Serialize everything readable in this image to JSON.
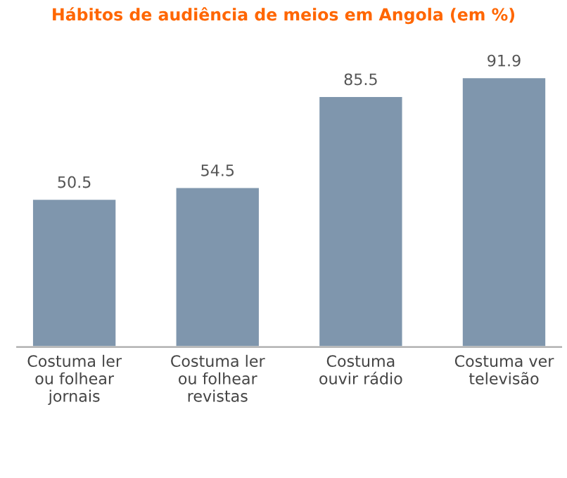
{
  "chart_data": {
    "type": "bar",
    "title": "Hábitos de audiência de meios em Angola (em %)",
    "categories": [
      "Costuma ler\nou folhear\njornais",
      "Costuma ler\nou folhear\nrevistas",
      "Costuma\nouvir rádio",
      "Costuma ver\ntelevisão"
    ],
    "values": [
      50.5,
      54.5,
      85.5,
      91.9
    ],
    "color": "#7f96ad",
    "data_labels": true,
    "grid": false,
    "legend": false
  }
}
